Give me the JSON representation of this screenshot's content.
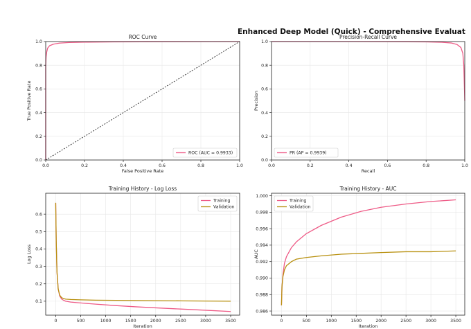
{
  "suptitle": "Enhanced Deep Model (Quick) - Comprehensive Evaluat",
  "colors": {
    "pink": "#ee5a86",
    "gold": "#b8900f",
    "diag": "#333333"
  },
  "chart_data": [
    {
      "type": "line",
      "title": "ROC Curve",
      "xlabel": "False Positive Rate",
      "ylabel": "True Positive Rate",
      "xlim": [
        0,
        1
      ],
      "ylim": [
        0,
        1
      ],
      "xticks": [
        "0.0",
        "0.2",
        "0.4",
        "0.6",
        "0.8",
        "1.0"
      ],
      "yticks": [
        "0.0",
        "0.2",
        "0.4",
        "0.6",
        "0.8",
        "1.0"
      ],
      "grid": true,
      "legend_position": "lower-right",
      "series": [
        {
          "name": "ROC (AUC = 0.9933)",
          "color": "#ee5a86",
          "x": [
            0,
            0.0,
            0.002,
            0.005,
            0.01,
            0.02,
            0.04,
            0.07,
            0.12,
            0.2,
            0.35,
            0.5,
            0.7,
            0.85,
            1.0
          ],
          "y": [
            0,
            0.8,
            0.87,
            0.91,
            0.945,
            0.965,
            0.978,
            0.987,
            0.992,
            0.995,
            0.997,
            0.998,
            0.999,
            0.9995,
            1.0
          ]
        },
        {
          "name": "",
          "color": "#333333",
          "dashed": true,
          "x": [
            0,
            1
          ],
          "y": [
            0,
            1
          ]
        }
      ]
    },
    {
      "type": "line",
      "title": "Precision-Recall Curve",
      "xlabel": "Recall",
      "ylabel": "Precision",
      "xlim": [
        0,
        1
      ],
      "ylim": [
        0,
        1
      ],
      "xticks": [
        "0.0",
        "0.2",
        "0.4",
        "0.6",
        "0.8",
        "1.0"
      ],
      "yticks": [
        "0.0",
        "0.2",
        "0.4",
        "0.6",
        "0.8",
        "1.0"
      ],
      "grid": true,
      "legend_position": "lower-left",
      "series": [
        {
          "name": "PR (AP = 0.9939)",
          "color": "#ee5a86",
          "x": [
            0,
            0.2,
            0.4,
            0.6,
            0.8,
            0.88,
            0.93,
            0.96,
            0.98,
            0.99,
            0.995,
            1.0
          ],
          "y": [
            1.0,
            1.0,
            1.0,
            0.999,
            0.997,
            0.994,
            0.988,
            0.975,
            0.95,
            0.9,
            0.8,
            0.5
          ]
        }
      ]
    },
    {
      "type": "line",
      "title": "Training History - Log Loss",
      "xlabel": "Iteration",
      "ylabel": "Log Loss",
      "xlim": [
        -200,
        3680
      ],
      "ylim": [
        0.02,
        0.72
      ],
      "xticks": [
        0,
        500,
        1000,
        1500,
        2000,
        2500,
        3000,
        3500
      ],
      "yticks": [
        0.1,
        0.2,
        0.3,
        0.4,
        0.5,
        0.6
      ],
      "grid": true,
      "legend_position": "top-right",
      "series": [
        {
          "name": "Training",
          "color": "#ee5a86",
          "x": [
            0,
            10,
            25,
            50,
            80,
            120,
            160,
            200,
            300,
            500,
            800,
            1200,
            1600,
            2000,
            2500,
            3000,
            3500
          ],
          "y": [
            0.665,
            0.45,
            0.27,
            0.17,
            0.13,
            0.112,
            0.105,
            0.1,
            0.095,
            0.09,
            0.083,
            0.075,
            0.068,
            0.062,
            0.055,
            0.048,
            0.041
          ]
        },
        {
          "name": "Validation",
          "color": "#b8900f",
          "x": [
            0,
            10,
            25,
            50,
            80,
            120,
            160,
            200,
            300,
            500,
            800,
            1200,
            1600,
            2000,
            2500,
            3000,
            3500
          ],
          "y": [
            0.665,
            0.45,
            0.27,
            0.17,
            0.135,
            0.12,
            0.115,
            0.112,
            0.11,
            0.108,
            0.106,
            0.105,
            0.104,
            0.103,
            0.102,
            0.101,
            0.1
          ]
        }
      ]
    },
    {
      "type": "line",
      "title": "Training History - AUC",
      "xlabel": "Iteration",
      "ylabel": "AUC",
      "xlim": [
        -200,
        3680
      ],
      "ylim": [
        0.9855,
        1.0003
      ],
      "xticks": [
        0,
        500,
        1000,
        1500,
        2000,
        2500,
        3000,
        3500
      ],
      "yticks": [
        "0.986",
        "0.988",
        "0.990",
        "0.992",
        "0.994",
        "0.996",
        "0.998",
        "1.000"
      ],
      "grid": true,
      "legend_position": "top-left",
      "series": [
        {
          "name": "Training",
          "color": "#ee5a86",
          "x": [
            0,
            10,
            30,
            60,
            100,
            200,
            300,
            500,
            800,
            1200,
            1600,
            2000,
            2500,
            3000,
            3500
          ],
          "y": [
            0.9867,
            0.9889,
            0.9905,
            0.9918,
            0.9926,
            0.9937,
            0.9944,
            0.9954,
            0.9964,
            0.9974,
            0.9981,
            0.9986,
            0.999,
            0.9993,
            0.9995
          ]
        },
        {
          "name": "Validation",
          "color": "#b8900f",
          "x": [
            0,
            10,
            30,
            60,
            100,
            200,
            300,
            500,
            800,
            1200,
            1600,
            2000,
            2500,
            3000,
            3500
          ],
          "y": [
            0.9867,
            0.989,
            0.9902,
            0.991,
            0.9915,
            0.992,
            0.9923,
            0.9925,
            0.9927,
            0.9929,
            0.993,
            0.9931,
            0.9932,
            0.9932,
            0.9933
          ]
        }
      ]
    }
  ]
}
